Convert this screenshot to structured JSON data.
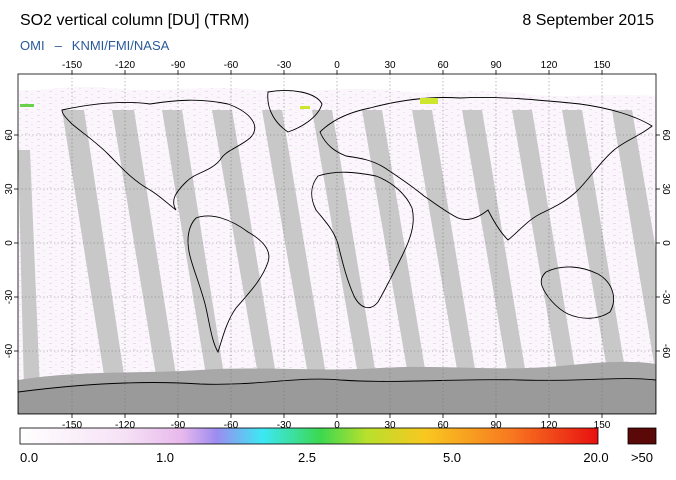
{
  "header": {
    "title": "SO2 vertical column [DU] (TRM)",
    "date": "8 September 2015",
    "credit_left": "OMI",
    "credit_dash": "–",
    "credit_right": "KNMI/FMI/NASA"
  },
  "map": {
    "lon_ticks": [
      "-150",
      "-120",
      "-90",
      "-60",
      "-30",
      "0",
      "30",
      "60",
      "90",
      "120",
      "150"
    ],
    "lat_ticks": [
      "60",
      "30",
      "0",
      "-30",
      "-60"
    ],
    "colors": {
      "no_data": "#c8c8c8",
      "swath_gap": "#b4b4b4",
      "polar_night": "#a8a8a8",
      "coast": "#000000"
    }
  },
  "colorbar": {
    "labels": [
      "0.0",
      "1.0",
      "2.5",
      "5.0",
      "20.0",
      ">50"
    ],
    "stops": [
      "#ffffff",
      "#f6e2f6",
      "#e8b8ec",
      "#9c8cf0",
      "#3ce8f4",
      "#3cd850",
      "#b8e02c",
      "#f8c820",
      "#f87820",
      "#e81010"
    ],
    "overflow_color": "#5a0808"
  }
}
